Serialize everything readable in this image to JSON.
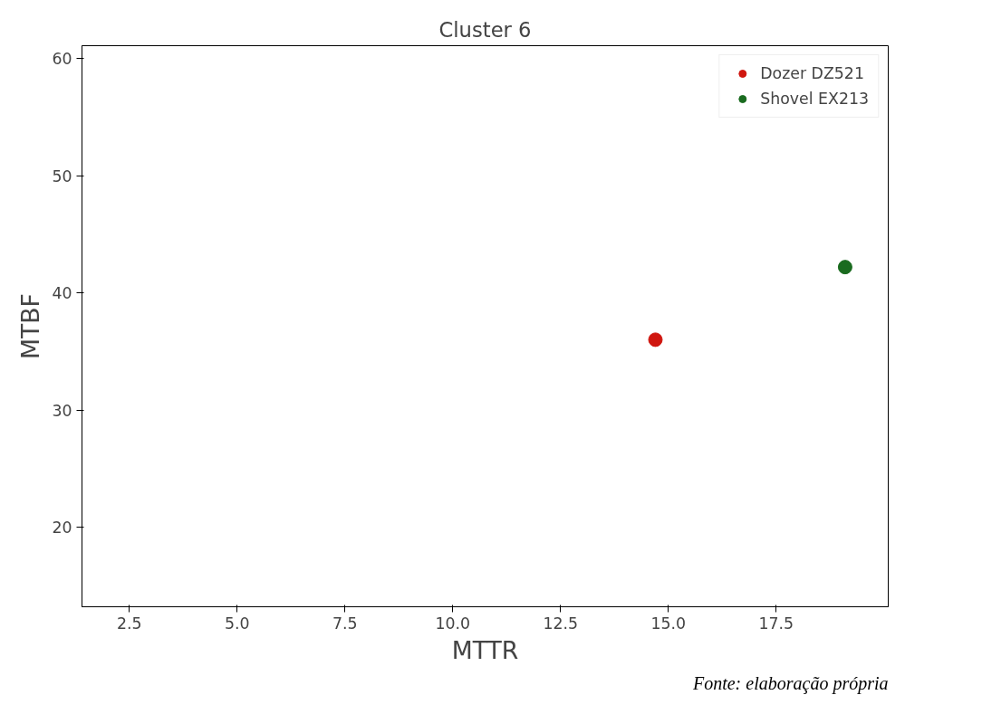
{
  "chart_data": {
    "type": "scatter",
    "title": "Cluster 6",
    "xlabel": "MTTR",
    "ylabel": "MTBF",
    "annotations": [
      "Fonte: elaboração própria"
    ],
    "series": [
      {
        "name": "Dozer DZ521",
        "color": "#d0160f",
        "x": [
          14.7
        ],
        "values": [
          36.0
        ]
      },
      {
        "name": "Shovel EX213",
        "color": "#1a6b1f",
        "x": [
          19.1
        ],
        "values": [
          42.2
        ]
      }
    ],
    "xlim": [
      1.4,
      20.1
    ],
    "ylim": [
      13.2,
      61.1
    ],
    "xticks": [
      {
        "value": 2.5,
        "label": "2.5"
      },
      {
        "value": 5,
        "label": "5.0"
      },
      {
        "value": 7.5,
        "label": "7.5"
      },
      {
        "value": 10,
        "label": "10.0"
      },
      {
        "value": 12.5,
        "label": "12.5"
      },
      {
        "value": 15,
        "label": "15.0"
      },
      {
        "value": 17.5,
        "label": "17.5"
      }
    ],
    "yticks": [
      20,
      30,
      40,
      50,
      60
    ],
    "grid": false,
    "legend": "top right",
    "marker": "circle"
  }
}
